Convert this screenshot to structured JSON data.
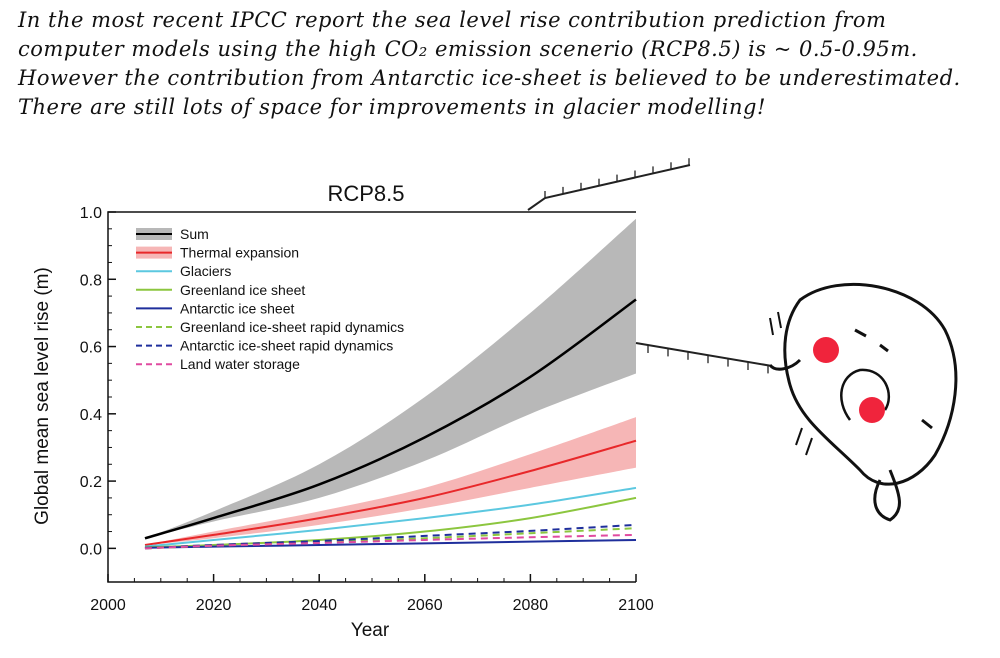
{
  "note": {
    "lines": [
      "In the most recent IPCC report the sea level rise contribution prediction from",
      "computer models using the high CO₂ emission scenerio (RCP8.5) is ~ 0.5-0.95m.",
      "However the contribution from Antarctic ice-sheet is believed to be underestimated.",
      "There are still lots of space for improvements in glacier modelling!"
    ]
  },
  "colors": {
    "sum": "#000000",
    "sum_band": "#b8b8b8",
    "thermal": "#e8282a",
    "thermal_band": "#f6b6b6",
    "glaciers": "#5cc8e0",
    "greenland": "#8cc63f",
    "antarctic": "#1f2f9c",
    "greenland_dyn": "#8cc63f",
    "antarctic_dyn": "#1f2f9c",
    "land_water": "#e04aa0",
    "cheek": "#f0243c"
  },
  "chart_data": {
    "type": "line",
    "title": "RCP8.5",
    "xlabel": "Year",
    "ylabel": "Global mean sea level rise (m)",
    "xlim": [
      2000,
      2100
    ],
    "ylim": [
      -0.1,
      1.0
    ],
    "xticks": [
      "2000",
      "2020",
      "2040",
      "2060",
      "2080",
      "2100"
    ],
    "yticks": [
      "0.0",
      "0.2",
      "0.4",
      "0.6",
      "0.8",
      "1.0"
    ],
    "grid": false,
    "legend_position": "top-left",
    "x": [
      2007,
      2020,
      2040,
      2060,
      2080,
      2100
    ],
    "series": [
      {
        "name": "Sum",
        "key": "sum",
        "dash": false,
        "values": [
          0.03,
          0.09,
          0.19,
          0.33,
          0.51,
          0.74
        ],
        "band": {
          "lower": [
            0.03,
            0.08,
            0.15,
            0.26,
            0.4,
            0.52
          ],
          "upper": [
            0.03,
            0.11,
            0.25,
            0.45,
            0.7,
            0.98
          ]
        }
      },
      {
        "name": "Thermal expansion",
        "key": "thermal",
        "dash": false,
        "values": [
          0.01,
          0.04,
          0.09,
          0.15,
          0.23,
          0.32
        ],
        "band": {
          "lower": [
            0.01,
            0.03,
            0.07,
            0.12,
            0.18,
            0.24
          ],
          "upper": [
            0.01,
            0.05,
            0.11,
            0.18,
            0.28,
            0.39
          ]
        }
      },
      {
        "name": "Glaciers",
        "key": "glaciers",
        "dash": false,
        "values": [
          0.005,
          0.025,
          0.055,
          0.09,
          0.13,
          0.18
        ]
      },
      {
        "name": "Greenland ice sheet",
        "key": "greenland",
        "dash": false,
        "values": [
          0.003,
          0.01,
          0.025,
          0.05,
          0.09,
          0.15
        ]
      },
      {
        "name": "Antarctic ice sheet",
        "key": "antarctic",
        "dash": false,
        "values": [
          0.002,
          0.005,
          0.01,
          0.015,
          0.02,
          0.025
        ]
      },
      {
        "name": "Greenland ice-sheet rapid dynamics",
        "key": "greenland_dyn",
        "dash": true,
        "values": [
          0.0,
          0.008,
          0.018,
          0.03,
          0.045,
          0.06
        ]
      },
      {
        "name": "Antarctic ice-sheet rapid dynamics",
        "key": "antarctic_dyn",
        "dash": true,
        "values": [
          0.0,
          0.01,
          0.022,
          0.037,
          0.052,
          0.07
        ]
      },
      {
        "name": "Land water storage",
        "key": "land_water",
        "dash": true,
        "values": [
          0.0,
          0.008,
          0.016,
          0.025,
          0.033,
          0.04
        ]
      }
    ]
  }
}
